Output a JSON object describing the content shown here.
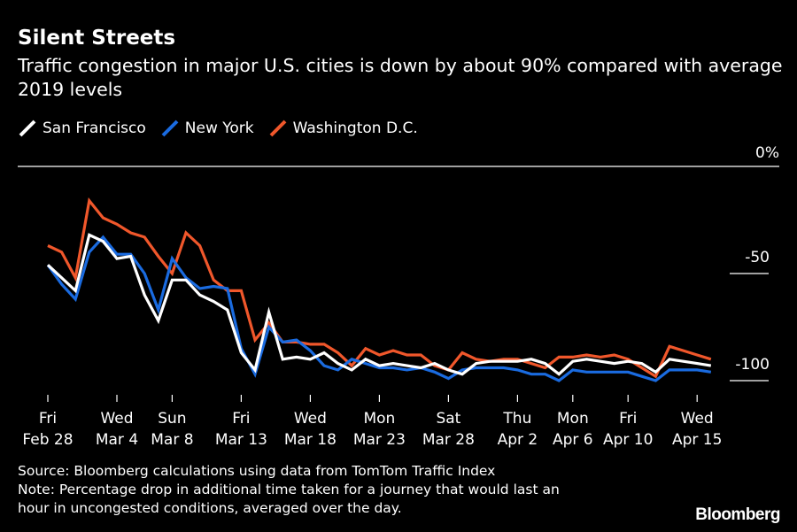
{
  "chart_data": {
    "type": "line",
    "title": "Silent Streets",
    "subtitle": "Traffic congestion in major U.S. cities is down by about 90% compared with average 2019 levels",
    "x_tick_labels": [
      {
        "line1": "Fri",
        "line2": "Feb 28",
        "index": 0
      },
      {
        "line1": "Wed",
        "line2": "Mar 4",
        "index": 5
      },
      {
        "line1": "Sun",
        "line2": "Mar 8",
        "index": 9
      },
      {
        "line1": "Fri",
        "line2": "Mar 13",
        "index": 14
      },
      {
        "line1": "Wed",
        "line2": "Mar 18",
        "index": 19
      },
      {
        "line1": "Mon",
        "line2": "Mar 23",
        "index": 24
      },
      {
        "line1": "Sat",
        "line2": "Mar 28",
        "index": 29
      },
      {
        "line1": "Thu",
        "line2": "Apr 2",
        "index": 34
      },
      {
        "line1": "Mon",
        "line2": "Apr 6",
        "index": 38
      },
      {
        "line1": "Fri",
        "line2": "Apr 10",
        "index": 42
      },
      {
        "line1": "Wed",
        "line2": "Apr 15",
        "index": 47
      }
    ],
    "y_ticks": [
      {
        "value": 0,
        "label": "0%"
      },
      {
        "value": -50,
        "label": "-50"
      },
      {
        "value": -100,
        "label": "-100"
      }
    ],
    "ylim": [
      -105,
      0
    ],
    "legend_position": "top-left",
    "series": [
      {
        "name": "San Francisco",
        "color": "#ffffff",
        "values": [
          -46,
          -52,
          -58,
          -32,
          -35,
          -43,
          -42,
          -60,
          -72,
          -53,
          -53,
          -60,
          -63,
          -67,
          -87,
          -95,
          -68,
          -90,
          -89,
          -90,
          -87,
          -92,
          -95,
          -90,
          -93,
          -92,
          -93,
          -94,
          -92,
          -95,
          -97,
          -92,
          -91,
          -91,
          -91,
          -90,
          -92,
          -97,
          -91,
          -90,
          -91,
          -92,
          -91,
          -92,
          -96,
          -90,
          -91,
          -92,
          -93
        ]
      },
      {
        "name": "New York",
        "color": "#1a6be0",
        "values": [
          -46,
          -55,
          -62,
          -40,
          -33,
          -41,
          -41,
          -50,
          -67,
          -43,
          -52,
          -57,
          -56,
          -57,
          -85,
          -97,
          -75,
          -82,
          -81,
          -86,
          -93,
          -95,
          -90,
          -92,
          -94,
          -94,
          -95,
          -94,
          -96,
          -99,
          -95,
          -94,
          -94,
          -94,
          -95,
          -97,
          -97,
          -100,
          -95,
          -96,
          -96,
          -96,
          -96,
          -98,
          -100,
          -95,
          -95,
          -95,
          -96
        ]
      },
      {
        "name": "Washington D.C.",
        "color": "#f0572b",
        "values": [
          -37,
          -40,
          -52,
          -16,
          -24,
          -27,
          -31,
          -33,
          -42,
          -50,
          -31,
          -37,
          -53,
          -58,
          -58,
          -81,
          -73,
          -82,
          -82,
          -83,
          -83,
          -87,
          -93,
          -85,
          -88,
          -86,
          -88,
          -88,
          -93,
          -95,
          -87,
          -90,
          -91,
          -90,
          -90,
          -92,
          -94,
          -89,
          -89,
          -88,
          -89,
          -88,
          -90,
          -94,
          -98,
          -84,
          -86,
          -88,
          -90
        ]
      }
    ]
  },
  "footer": {
    "source": "Source: Bloomberg calculations using data from TomTom Traffic Index",
    "note_line1": "Note: Percentage drop in additional time taken for a journey that would last an",
    "note_line2": "hour in uncongested conditions, averaged over the day."
  },
  "brand": "Bloomberg"
}
